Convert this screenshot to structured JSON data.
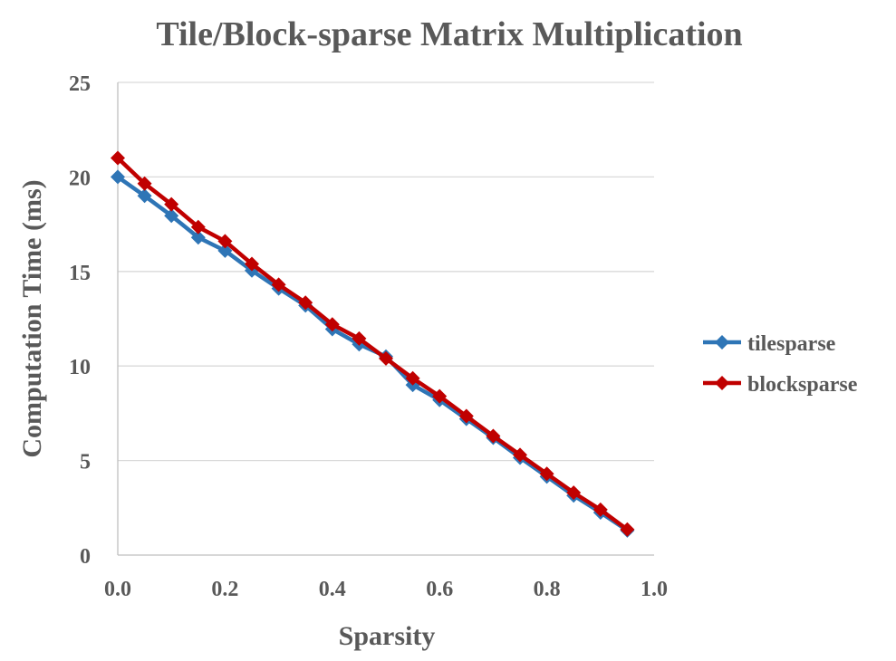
{
  "chart_data": {
    "type": "line",
    "title": "Tile/Block-sparse Matrix Multiplication",
    "xlabel": "Sparsity",
    "ylabel": "Computation Time (ms)",
    "xlim": [
      0.0,
      1.0
    ],
    "ylim": [
      0,
      25
    ],
    "x_ticks": [
      "0.0",
      "0.2",
      "0.4",
      "0.6",
      "0.8",
      "1.0"
    ],
    "y_ticks": [
      "0",
      "5",
      "10",
      "15",
      "20",
      "25"
    ],
    "grid": "horizontal",
    "legend_position": "right",
    "series": [
      {
        "name": "tilesparse",
        "color": "#2e75b6",
        "marker": "diamond",
        "x": [
          0.0,
          0.05,
          0.1,
          0.15,
          0.2,
          0.25,
          0.3,
          0.35,
          0.4,
          0.45,
          0.5,
          0.55,
          0.6,
          0.65,
          0.7,
          0.75,
          0.8,
          0.85,
          0.9,
          0.95
        ],
        "y": [
          20.0,
          19.0,
          17.95,
          16.8,
          16.1,
          15.05,
          14.1,
          13.2,
          11.95,
          11.15,
          10.5,
          9.0,
          8.2,
          7.2,
          6.2,
          5.15,
          4.15,
          3.15,
          2.25,
          1.3
        ]
      },
      {
        "name": "blocksparse",
        "color": "#c00000",
        "marker": "diamond",
        "x": [
          0.0,
          0.05,
          0.1,
          0.15,
          0.2,
          0.25,
          0.3,
          0.35,
          0.4,
          0.45,
          0.5,
          0.55,
          0.6,
          0.65,
          0.7,
          0.75,
          0.8,
          0.85,
          0.9,
          0.95
        ],
        "y": [
          21.0,
          19.65,
          18.55,
          17.35,
          16.6,
          15.4,
          14.3,
          13.35,
          12.2,
          11.45,
          10.4,
          9.35,
          8.4,
          7.35,
          6.3,
          5.3,
          4.3,
          3.3,
          2.4,
          1.35
        ]
      }
    ]
  }
}
